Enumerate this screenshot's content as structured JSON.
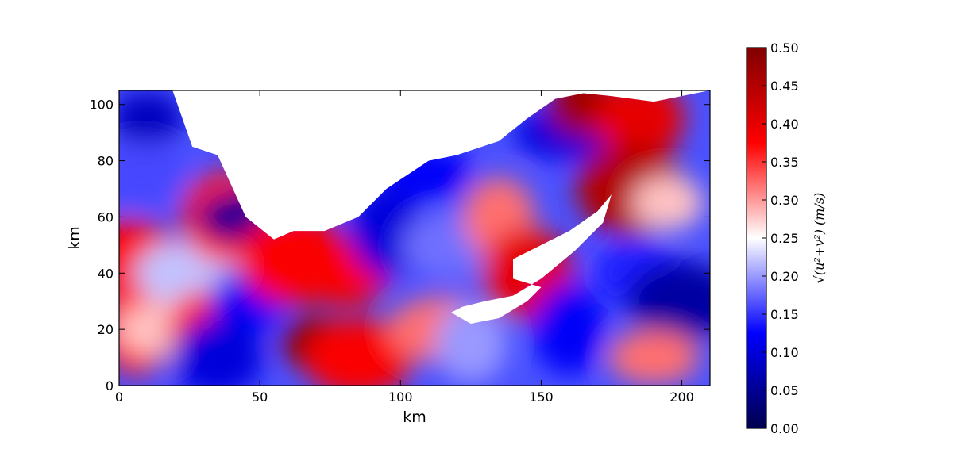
{
  "chart_data": {
    "type": "heatmap",
    "title": "",
    "xlabel": "km",
    "ylabel": "km",
    "xlim": [
      0,
      210
    ],
    "ylim": [
      0,
      105
    ],
    "xticks": [
      0,
      50,
      100,
      150,
      200
    ],
    "yticks": [
      0,
      20,
      40,
      60,
      80,
      100
    ],
    "colorbar": {
      "label": "√(u²+v²) (m/s)",
      "colormap": "seismic",
      "vmin": 0.0,
      "vmax": 0.5,
      "ticks": [
        "0.00",
        "0.05",
        "0.10",
        "0.15",
        "0.20",
        "0.25",
        "0.30",
        "0.35",
        "0.40",
        "0.45",
        "0.50"
      ],
      "colors": [
        "#00004d",
        "#0000ff",
        "#ffffff",
        "#ff0000",
        "#800000"
      ]
    },
    "land_mask_note_color": "#ffffff",
    "features": [
      {
        "x": 10,
        "y": 95,
        "value": 0.08
      },
      {
        "x": 8,
        "y": 75,
        "value": 0.16
      },
      {
        "x": 3,
        "y": 45,
        "value": 0.38
      },
      {
        "x": 6,
        "y": 20,
        "value": 0.36
      },
      {
        "x": 15,
        "y": 20,
        "value": 0.28
      },
      {
        "x": 25,
        "y": 40,
        "value": 0.22
      },
      {
        "x": 30,
        "y": 20,
        "value": 0.36
      },
      {
        "x": 38,
        "y": 60,
        "value": 0.36
      },
      {
        "x": 47,
        "y": 60,
        "value": 0.05
      },
      {
        "x": 45,
        "y": 30,
        "value": 0.12
      },
      {
        "x": 35,
        "y": 10,
        "value": 0.1
      },
      {
        "x": 62,
        "y": 45,
        "value": 0.38
      },
      {
        "x": 70,
        "y": 15,
        "value": 0.5
      },
      {
        "x": 80,
        "y": 40,
        "value": 0.38
      },
      {
        "x": 85,
        "y": 10,
        "value": 0.38
      },
      {
        "x": 95,
        "y": 55,
        "value": 0.1
      },
      {
        "x": 110,
        "y": 75,
        "value": 0.12
      },
      {
        "x": 120,
        "y": 50,
        "value": 0.18
      },
      {
        "x": 135,
        "y": 60,
        "value": 0.32
      },
      {
        "x": 145,
        "y": 40,
        "value": 0.4
      },
      {
        "x": 160,
        "y": 90,
        "value": 0.1
      },
      {
        "x": 165,
        "y": 100,
        "value": 0.47
      },
      {
        "x": 185,
        "y": 95,
        "value": 0.4
      },
      {
        "x": 182,
        "y": 70,
        "value": 0.45
      },
      {
        "x": 195,
        "y": 65,
        "value": 0.28
      },
      {
        "x": 185,
        "y": 40,
        "value": 0.14
      },
      {
        "x": 200,
        "y": 30,
        "value": 0.06
      },
      {
        "x": 160,
        "y": 20,
        "value": 0.12
      },
      {
        "x": 190,
        "y": 10,
        "value": 0.32
      },
      {
        "x": 115,
        "y": 20,
        "value": 0.32
      },
      {
        "x": 125,
        "y": 15,
        "value": 0.2
      }
    ],
    "land_regions": [
      {
        "name": "north-land",
        "points": [
          [
            19,
            105
          ],
          [
            26,
            85
          ],
          [
            35,
            82
          ],
          [
            45,
            60
          ],
          [
            55,
            52
          ],
          [
            62,
            55
          ],
          [
            73,
            55
          ],
          [
            85,
            60
          ],
          [
            95,
            70
          ],
          [
            110,
            80
          ],
          [
            120,
            82
          ],
          [
            135,
            87
          ],
          [
            145,
            95
          ],
          [
            155,
            102
          ],
          [
            165,
            104
          ],
          [
            175,
            103
          ],
          [
            190,
            101
          ],
          [
            210,
            105
          ]
        ]
      },
      {
        "name": "island",
        "points": [
          [
            140,
            45
          ],
          [
            150,
            50
          ],
          [
            160,
            55
          ],
          [
            170,
            62
          ],
          [
            175,
            68
          ],
          [
            172,
            58
          ],
          [
            162,
            48
          ],
          [
            150,
            38
          ],
          [
            140,
            32
          ],
          [
            130,
            30
          ],
          [
            122,
            28
          ],
          [
            118,
            26
          ],
          [
            125,
            22
          ],
          [
            135,
            24
          ],
          [
            145,
            30
          ],
          [
            150,
            35
          ],
          [
            140,
            38
          ]
        ]
      }
    ]
  }
}
